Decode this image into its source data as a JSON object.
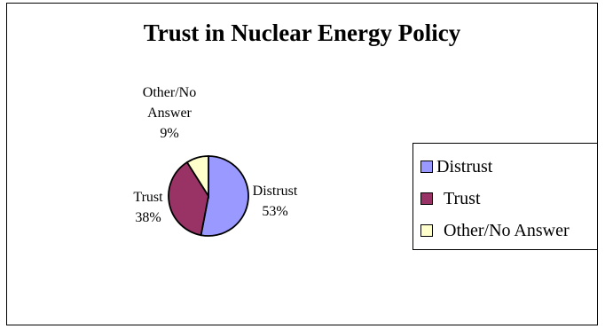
{
  "chart_data": {
    "type": "pie",
    "title": "Trust in Nuclear Energy Policy",
    "categories": [
      "Distrust",
      "Trust",
      "Other/No Answer"
    ],
    "values": [
      53,
      38,
      9
    ],
    "colors": [
      "#9999ff",
      "#993366",
      "#ffffcc"
    ],
    "start_angle_deg": 0,
    "direction": "clockwise",
    "slice_labels": [
      {
        "category": "Distrust",
        "pct": "53%"
      },
      {
        "category": "Trust",
        "pct": "38%"
      },
      {
        "category": "Other/No Answer",
        "line1": "Other/No",
        "line2": "Answer",
        "pct": "9%"
      }
    ],
    "legend": {
      "position": "right",
      "items": [
        "Distrust",
        "Trust",
        "Other/No Answer"
      ]
    }
  }
}
